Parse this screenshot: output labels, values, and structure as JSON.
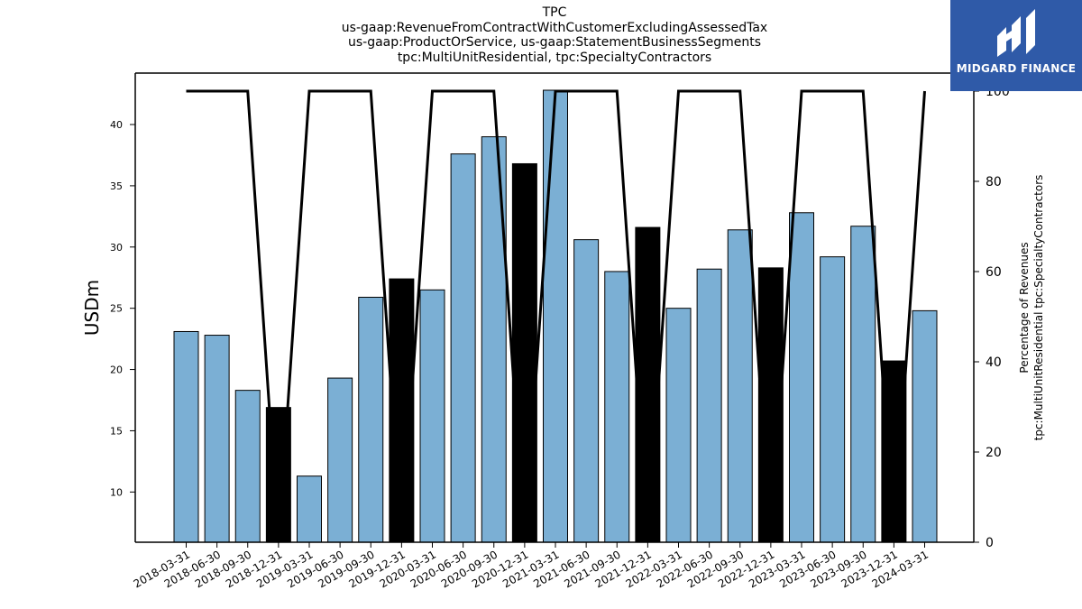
{
  "chart_data": {
    "type": "bar",
    "title_lines": [
      "TPC",
      "us-gaap:RevenueFromContractWithCustomerExcludingAssessedTax",
      "us-gaap:ProductOrService, us-gaap:StatementBusinessSegments",
      "tpc:MultiUnitResidential, tpc:SpecialtyContractors"
    ],
    "categories": [
      "2018-03-31",
      "2018-06-30",
      "2018-09-30",
      "2018-12-31",
      "2019-03-31",
      "2019-06-30",
      "2019-09-30",
      "2019-12-31",
      "2020-03-31",
      "2020-06-30",
      "2020-09-30",
      "2020-12-31",
      "2021-03-31",
      "2021-06-30",
      "2021-09-30",
      "2021-12-31",
      "2022-03-31",
      "2022-06-30",
      "2022-09-30",
      "2022-12-31",
      "2023-03-31",
      "2023-06-30",
      "2023-09-30",
      "2023-12-31",
      "2024-03-31"
    ],
    "values": [
      23.1,
      22.8,
      18.3,
      16.9,
      11.3,
      19.3,
      25.9,
      27.4,
      26.5,
      37.6,
      39.0,
      36.8,
      42.8,
      30.6,
      28.0,
      31.6,
      25.0,
      28.2,
      31.4,
      28.3,
      32.8,
      29.2,
      31.7,
      20.7,
      24.8
    ],
    "highlighted": [
      false,
      false,
      false,
      true,
      false,
      false,
      false,
      true,
      false,
      false,
      false,
      true,
      false,
      false,
      false,
      true,
      false,
      false,
      false,
      true,
      false,
      false,
      false,
      true,
      false
    ],
    "percentage_series": [
      100,
      100,
      100,
      0,
      100,
      100,
      100,
      0,
      100,
      100,
      100,
      0,
      100,
      100,
      100,
      0,
      100,
      100,
      100,
      0,
      100,
      100,
      100,
      0,
      100
    ],
    "ylabel": "USDm",
    "y2label_lines": [
      "Percentage of Revenues",
      "tpc:MultiUnitResidential tpc:SpecialtyContractors"
    ],
    "ylim": [
      5.9,
      44.2
    ],
    "yticks": [
      10,
      15,
      20,
      25,
      30,
      35,
      40
    ],
    "y2lim": [
      0,
      100
    ],
    "y2ticks": [
      0,
      20,
      40,
      60,
      80,
      100
    ],
    "grid": false,
    "colors": {
      "bar": "#7bafd4",
      "highlight": "#000000",
      "line": "#000000",
      "axis": "#000000"
    }
  },
  "logo": {
    "text": "MIDGARD FINANCE",
    "bg": "#2f5aa8"
  }
}
